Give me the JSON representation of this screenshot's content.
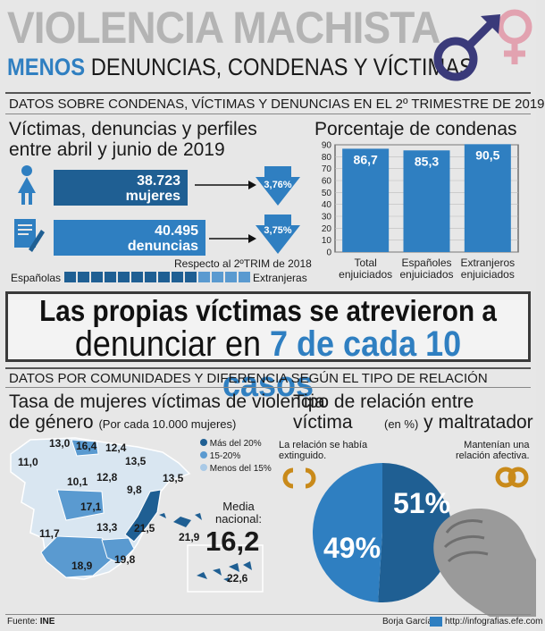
{
  "header": {
    "title": "VIOLENCIA MACHISTA",
    "subtitle_highlight": "MENOS",
    "subtitle_rest": " DENUNCIAS, CONDENAS Y VÍCTIMAS"
  },
  "section1": {
    "heading": "DATOS SOBRE CONDENAS, VÍCTIMAS Y DENUNCIAS EN EL 2º TRIMESTRE DE 2019"
  },
  "victims": {
    "title_line1": "Víctimas, denuncias y perfiles",
    "title_line2": "entre abril y junio de 2019",
    "women_value": "38.723",
    "women_label": "mujeres",
    "women_change": "3,76%",
    "complaints_value": "40.495",
    "complaints_label": "denuncias",
    "complaints_change": "3,75%",
    "compare_note": "Respecto al 2ºTRIM de 2018",
    "left_label": "Españolas",
    "right_label": "Extranjeras"
  },
  "convictions": {
    "title": "Porcentaje de condenas"
  },
  "chart_data": {
    "type": "bar",
    "title": "Porcentaje de condenas",
    "categories": [
      "Total enjuiciados",
      "Españoles enjuiciados",
      "Extranjeros enjuiciados"
    ],
    "category_lines": [
      [
        "Total",
        "enjuiciados"
      ],
      [
        "Españoles",
        "enjuiciados"
      ],
      [
        "Extranjeros",
        "enjuiciados"
      ]
    ],
    "values": [
      86.7,
      85.3,
      90.5
    ],
    "value_labels": [
      "86,7",
      "85,3",
      "90,5"
    ],
    "ylim": [
      0,
      90
    ],
    "yticks": [
      0,
      10,
      20,
      30,
      40,
      50,
      60,
      70,
      80,
      90
    ],
    "grid": true,
    "colors": {
      "bars": "#2f7fc1",
      "frame": "#333333"
    }
  },
  "banner": {
    "line1": "Las propias víctimas se atrevieron a",
    "line2_pre": "denunciar en ",
    "line2_highlight": "7 de cada 10 casos"
  },
  "section2": {
    "heading": "DATOS POR COMUNIDADES Y DIFERENCIA SEGÚN EL TIPO DE RELACIÓN"
  },
  "rate": {
    "title_line1": "Tasa de mujeres víctimas de violencia",
    "title_line2": "de género",
    "title_note": "(Por cada 10.000 mujeres)",
    "legend": [
      {
        "label": "Más del 20%",
        "color": "#1f5f93"
      },
      {
        "label": "15-20%",
        "color": "#5a9ad0"
      },
      {
        "label": "Menos del 15%",
        "color": "#a9c9e6"
      }
    ],
    "national_label_1": "Media",
    "national_label_2": "nacional:",
    "national_value": "16,2",
    "regions": [
      "13,0",
      "16,4",
      "12,4",
      "11,0",
      "13,5",
      "10,1",
      "12,8",
      "9,8",
      "13,5",
      "17,1",
      "13,3",
      "21,5",
      "11,7",
      "21,9",
      "18,9",
      "19,8",
      "22,6"
    ]
  },
  "relation": {
    "title_line1": "Tipo de relación entre víctima",
    "title_note": "(en %)",
    "title_line2": " y maltratador",
    "left_note_1": "La relación se había",
    "left_note_2": "extinguido.",
    "right_note_1": "Mantenían una",
    "right_note_2": "relación afectiva.",
    "pie": {
      "ended_value": 49,
      "ended_label": "49%",
      "ongoing_value": 51,
      "ongoing_label": "51%"
    }
  },
  "footer": {
    "source_prefix": "Fuente: ",
    "source": "INE",
    "author": "Borja García",
    "url": "http://infografias.efe.com"
  },
  "colors": {
    "accent": "#2f7fc1",
    "dark": "#1f5f93",
    "light": "#a9c9e6"
  }
}
